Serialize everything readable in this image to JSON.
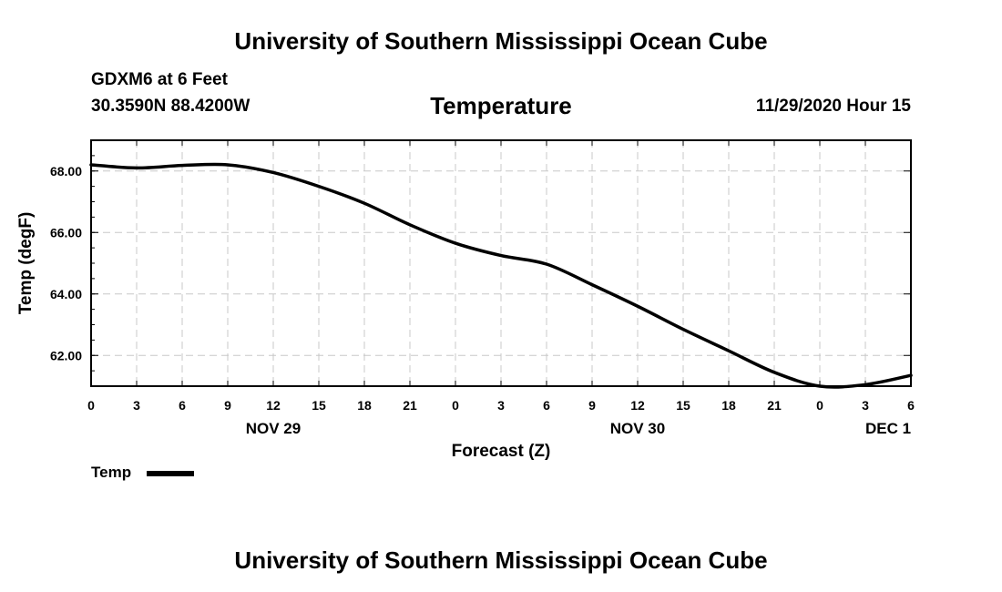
{
  "header": {
    "title": "University of Southern Mississippi Ocean Cube",
    "station": "GDXM6 at 6 Feet",
    "coords": "30.3590N 88.4200W",
    "date": "11/29/2020 Hour 15"
  },
  "footer": {
    "title": "University of Southern Mississippi Ocean Cube"
  },
  "chart_data": {
    "type": "line",
    "title": "Temperature",
    "xlabel": "Forecast (Z)",
    "ylabel": "Temp (degF)",
    "xlim": [
      0,
      54
    ],
    "ylim": [
      61.0,
      69.0
    ],
    "x_ticks": [
      {
        "x": 0,
        "label": "0"
      },
      {
        "x": 3,
        "label": "3"
      },
      {
        "x": 6,
        "label": "6"
      },
      {
        "x": 9,
        "label": "9"
      },
      {
        "x": 12,
        "label": "12"
      },
      {
        "x": 15,
        "label": "15"
      },
      {
        "x": 18,
        "label": "18"
      },
      {
        "x": 21,
        "label": "21"
      },
      {
        "x": 24,
        "label": "0"
      },
      {
        "x": 27,
        "label": "3"
      },
      {
        "x": 30,
        "label": "6"
      },
      {
        "x": 33,
        "label": "9"
      },
      {
        "x": 36,
        "label": "12"
      },
      {
        "x": 39,
        "label": "15"
      },
      {
        "x": 42,
        "label": "18"
      },
      {
        "x": 45,
        "label": "21"
      },
      {
        "x": 48,
        "label": "0"
      },
      {
        "x": 51,
        "label": "3"
      },
      {
        "x": 54,
        "label": "6"
      }
    ],
    "day_labels": [
      {
        "x": 12,
        "label": "NOV 29"
      },
      {
        "x": 36,
        "label": "NOV 30"
      },
      {
        "x": 52.5,
        "label": "DEC 1"
      }
    ],
    "y_ticks": [
      {
        "y": 62,
        "label": "62.00"
      },
      {
        "y": 64,
        "label": "64.00"
      },
      {
        "y": 66,
        "label": "66.00"
      },
      {
        "y": 68,
        "label": "68.00"
      }
    ],
    "grid": true,
    "legend": "bottom-left",
    "series": [
      {
        "name": "Temp",
        "x": [
          0,
          3,
          6,
          9,
          12,
          15,
          18,
          21,
          24,
          27,
          30,
          33,
          36,
          39,
          42,
          45,
          48,
          51,
          54
        ],
        "values": [
          68.2,
          68.1,
          68.18,
          68.2,
          67.95,
          67.5,
          66.95,
          66.25,
          65.65,
          65.25,
          64.97,
          64.3,
          63.6,
          62.85,
          62.15,
          61.45,
          61.0,
          61.05,
          61.35
        ]
      }
    ]
  }
}
